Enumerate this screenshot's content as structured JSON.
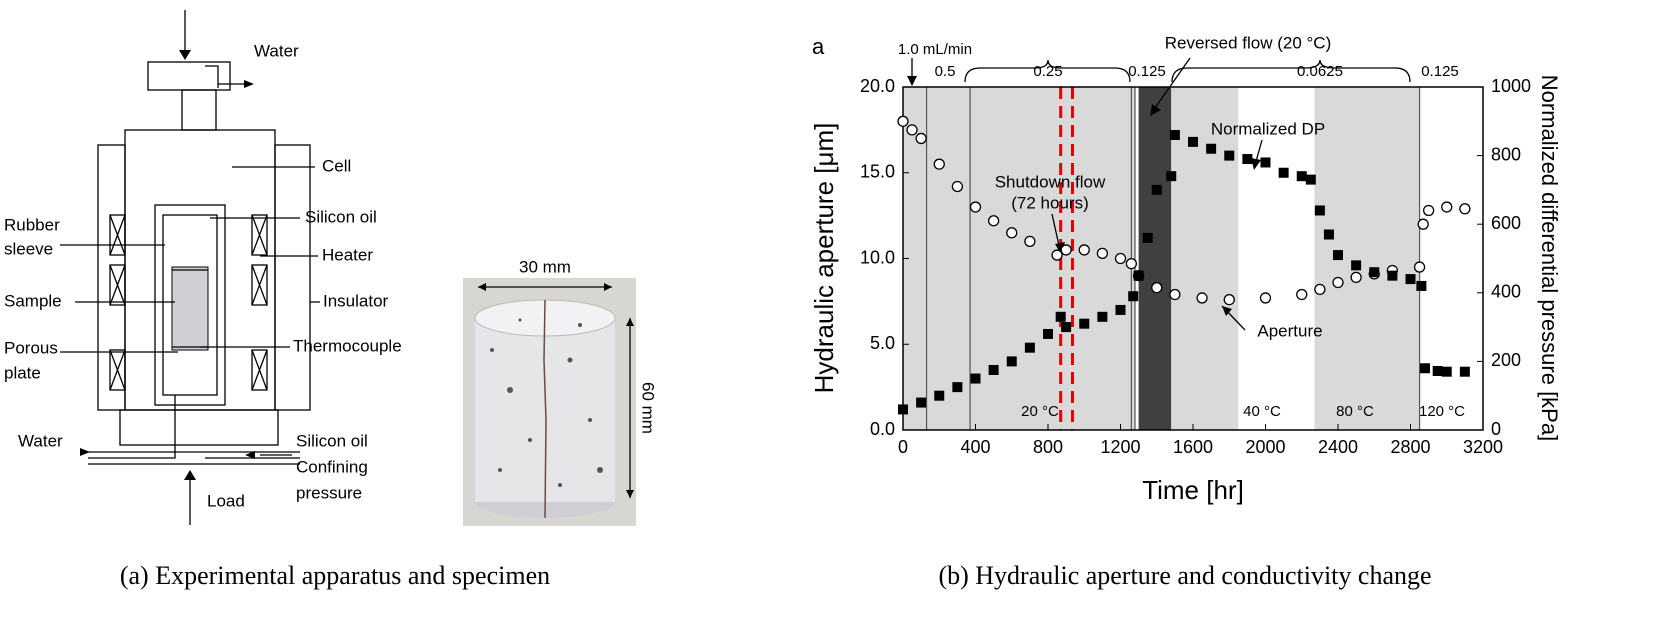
{
  "diagram": {
    "labels": {
      "water_in": "Water",
      "cell": "Cell",
      "silicon_oil": "Silicon oil",
      "rubber_sleeve": [
        "Rubber",
        "sleeve"
      ],
      "heater": "Heater",
      "sample": "Sample",
      "insulator": "Insulator",
      "porous_plate": [
        "Porous",
        "plate"
      ],
      "thermocouple": "Thermocouple",
      "water_out": "Water",
      "silicon_oil_in": "Silicon oil",
      "confining_pressure": [
        "Confining",
        "pressure"
      ],
      "load": "Load"
    },
    "specimen": {
      "width": "30 mm",
      "height": "60 mm"
    }
  },
  "captions": [
    "(a) Experimental apparatus and specimen",
    "(b) Hydraulic aperture and conductivity change"
  ],
  "chart_data": {
    "type": "scatter",
    "panel": "a",
    "xlabel": "Time [hr]",
    "ylabel": "Hydraulic aperture [μm]",
    "y2label": "Normalized differential pressure [kPa]",
    "xlim": [
      0,
      3200
    ],
    "xticks": [
      0,
      400,
      800,
      1200,
      1600,
      2000,
      2400,
      2800,
      3200
    ],
    "ylim": [
      0,
      20
    ],
    "yticks": [
      {
        "value": 0,
        "label": "0.0"
      },
      {
        "value": 5,
        "label": "5.0"
      },
      {
        "value": 10,
        "label": "10.0"
      },
      {
        "value": 15,
        "label": "15.0"
      },
      {
        "value": 20,
        "label": "20.0"
      }
    ],
    "y2lim": [
      0,
      1000
    ],
    "y2ticks": [
      0,
      200,
      400,
      600,
      800,
      1000
    ],
    "regions": [
      {
        "xlim": [
          0,
          1280
        ],
        "color": "#d9d9d9"
      },
      {
        "xlim": [
          1300,
          1480
        ],
        "color": "#404040"
      },
      {
        "xlim": [
          1480,
          1850
        ],
        "color": "#d9d9d9"
      },
      {
        "xlim": [
          2270,
          2850
        ],
        "color": "#d9d9d9"
      }
    ],
    "vlines": [
      {
        "x": 130,
        "color": "#555555"
      },
      {
        "x": 370,
        "color": "#555555"
      },
      {
        "x": 1260,
        "color": "#555555"
      },
      {
        "x": 1280,
        "color": "#555555"
      },
      {
        "x": 2850,
        "color": "#555555"
      },
      {
        "x": 870,
        "color": "#e00000",
        "dashed": true
      },
      {
        "x": 935,
        "color": "#e00000",
        "dashed": true
      }
    ],
    "annotations": [
      "1.0 mL/min",
      "0.5",
      "0.25",
      "0.125",
      "Reversed flow (20 °C)",
      "0.0625",
      "0.125",
      "Shutdown flow",
      "(72 hours)",
      "Normalized DP",
      "Aperture",
      "20 °C",
      "40 °C",
      "80 °C",
      "120 °C"
    ],
    "series": [
      {
        "name": "Aperture",
        "color": "#000000",
        "marker": "open-circle",
        "x": [
          0,
          50,
          100,
          200,
          300,
          400,
          500,
          600,
          700,
          850,
          900,
          1000,
          1100,
          1200,
          1260,
          1300,
          1400,
          1500,
          1650,
          1800,
          2000,
          2200,
          2300,
          2400,
          2500,
          2600,
          2700,
          2850,
          2870,
          2900,
          3000,
          3100
        ],
        "values": [
          18,
          17.5,
          17,
          15.5,
          14.2,
          13,
          12.2,
          11.5,
          11,
          10.2,
          10.5,
          10.5,
          10.3,
          10,
          9.7,
          9,
          8.3,
          7.9,
          7.7,
          7.6,
          7.7,
          7.9,
          8.2,
          8.6,
          8.9,
          9.1,
          9.3,
          9.5,
          12,
          12.8,
          13,
          12.9
        ]
      },
      {
        "name": "Normalized DP",
        "color": "#000000",
        "marker": "square",
        "axis": "y2",
        "x": [
          0,
          100,
          200,
          300,
          400,
          500,
          600,
          700,
          800,
          870,
          900,
          1000,
          1100,
          1200,
          1270,
          1300,
          1350,
          1400,
          1480,
          1500,
          1600,
          1700,
          1800,
          1900,
          2000,
          2100,
          2200,
          2250,
          2300,
          2350,
          2400,
          2500,
          2600,
          2700,
          2800,
          2860,
          2880,
          2950,
          3000,
          3100
        ],
        "values": [
          60,
          80,
          100,
          125,
          150,
          175,
          200,
          240,
          280,
          330,
          300,
          310,
          330,
          350,
          390,
          450,
          560,
          700,
          740,
          860,
          840,
          820,
          800,
          790,
          780,
          750,
          740,
          730,
          640,
          570,
          510,
          480,
          460,
          450,
          440,
          420,
          180,
          172,
          170,
          170
        ]
      }
    ]
  }
}
